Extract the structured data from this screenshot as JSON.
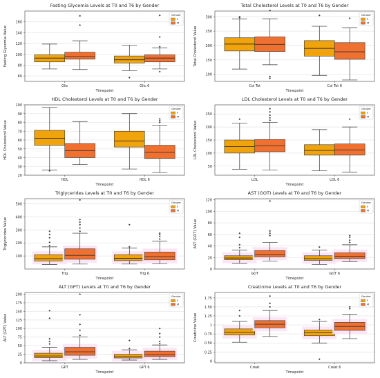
{
  "colors": {
    "F": "#f0a30a",
    "M": "#f07030",
    "grid": "#e6e6e6",
    "median": "#333333",
    "band": "#fbe3f5"
  },
  "chart_data": [
    {
      "type": "boxplot",
      "title": "Fasting Glycemia Levels at T0 and T6 by Gender",
      "xlabel": "Timepoint",
      "ylabel": "Fasting Glycemia Value",
      "ylim": [
        50,
        180
      ],
      "yticks": [
        60,
        80,
        100,
        120,
        140,
        160
      ],
      "categories": [
        "Glic",
        "Glic 6"
      ],
      "legend": {
        "title": "Gender",
        "entries": [
          "F",
          "M"
        ],
        "position": "top-right"
      },
      "band": false,
      "series": [
        {
          "name": "F",
          "boxes": [
            {
              "whislo": 73,
              "q1": 86,
              "med": 93,
              "q3": 99,
              "whishi": 119,
              "fliers": []
            },
            {
              "whislo": 70,
              "q1": 84,
              "med": 90,
              "q3": 97,
              "whishi": 117,
              "fliers": [
                57
              ]
            }
          ]
        },
        {
          "name": "M",
          "boxes": [
            {
              "whislo": 72,
              "q1": 91,
              "med": 96,
              "q3": 104,
              "whishi": 125,
              "fliers": [
                154,
                171
              ]
            },
            {
              "whislo": 73,
              "q1": 86,
              "med": 93,
              "q3": 99,
              "whishi": 112,
              "fliers": [
                68,
                114,
                132,
                172
              ]
            }
          ]
        }
      ]
    },
    {
      "type": "boxplot",
      "title": "Total Cholesterol Levels at T0 and T6 by Gender",
      "xlabel": "Timepoint",
      "ylabel": "Total Cholesterol Value",
      "ylim": [
        75,
        320
      ],
      "yticks": [
        100,
        150,
        200,
        250,
        300
      ],
      "categories": [
        "Col Tot",
        "Col Tot 6"
      ],
      "legend": {
        "title": "Gender",
        "entries": [
          "F",
          "M"
        ],
        "position": "top-right"
      },
      "band": false,
      "series": [
        {
          "name": "F",
          "boxes": [
            {
              "whislo": 118,
              "q1": 181,
              "med": 205,
              "q3": 227,
              "whishi": 292,
              "fliers": [
                297,
                300
              ]
            },
            {
              "whislo": 96,
              "q1": 163,
              "med": 190,
              "q3": 217,
              "whishi": 267,
              "fliers": [
                305
              ]
            }
          ]
        },
        {
          "name": "M",
          "boxes": [
            {
              "whislo": 133,
              "q1": 179,
              "med": 204,
              "q3": 230,
              "whishi": 293,
              "fliers": [
                86,
                92,
                322
              ]
            },
            {
              "whislo": 80,
              "q1": 152,
              "med": 178,
              "q3": 210,
              "whishi": 262,
              "fliers": [
                295
              ]
            }
          ]
        }
      ]
    },
    {
      "type": "boxplot",
      "title": "HDL Cholesterol Levels at T0 and T6 by Gender",
      "xlabel": "Timepoint",
      "ylabel": "HDL Cholesterol Value",
      "ylim": [
        20,
        100
      ],
      "yticks": [
        20,
        30,
        40,
        50,
        60,
        70,
        80,
        90,
        100
      ],
      "categories": [
        "HDL",
        "HDL 6"
      ],
      "legend": {
        "title": "Gender",
        "entries": [
          "F",
          "M"
        ],
        "position": "top-right"
      },
      "band": false,
      "series": [
        {
          "name": "F",
          "boxes": [
            {
              "whislo": 26,
              "q1": 54,
              "med": 62,
              "q3": 71,
              "whishi": 97,
              "fliers": [
                25
              ]
            },
            {
              "whislo": 27,
              "q1": 52,
              "med": 59,
              "q3": 70,
              "whishi": 90,
              "fliers": []
            }
          ]
        },
        {
          "name": "M",
          "boxes": [
            {
              "whislo": 32,
              "q1": 40,
              "med": 48,
              "q3": 56,
              "whishi": 81,
              "fliers": []
            },
            {
              "whislo": 23,
              "q1": 39,
              "med": 46,
              "q3": 54,
              "whishi": 77,
              "fliers": [
                80,
                82,
                84
              ]
            }
          ]
        }
      ]
    },
    {
      "type": "boxplot",
      "title": "LDL Cholesterol Levels at T0 and T6 by Gender",
      "xlabel": "Timepoint",
      "ylabel": "LDL Cholesterol Value",
      "ylim": [
        15,
        285
      ],
      "yticks": [
        50,
        100,
        150,
        200,
        250
      ],
      "categories": [
        "LDL",
        "LDL 6"
      ],
      "legend": {
        "title": "Gender",
        "entries": [
          "F",
          "M"
        ],
        "position": "top-right"
      },
      "band": false,
      "series": [
        {
          "name": "F",
          "boxes": [
            {
              "whislo": 38,
              "q1": 100,
              "med": 125,
              "q3": 150,
              "whishi": 215,
              "fliers": [
                230
              ]
            },
            {
              "whislo": 32,
              "q1": 92,
              "med": 110,
              "q3": 132,
              "whishi": 190,
              "fliers": []
            }
          ]
        },
        {
          "name": "M",
          "boxes": [
            {
              "whislo": 35,
              "q1": 105,
              "med": 128,
              "q3": 152,
              "whishi": 218,
              "fliers": [
                226,
                235,
                245,
                258,
                270
              ]
            },
            {
              "whislo": 27,
              "q1": 92,
              "med": 112,
              "q3": 135,
              "whishi": 200,
              "fliers": [
                230
              ]
            }
          ]
        }
      ]
    },
    {
      "type": "boxplot",
      "title": "Triglycerides Levels at T0 and T6 by Gender",
      "xlabel": "Timepoint",
      "ylabel": "Triglycerides Value",
      "ylim": [
        0,
        540
      ],
      "yticks": [
        100,
        200,
        300,
        400,
        500
      ],
      "categories": [
        "Trig",
        "Trig 6"
      ],
      "legend": {
        "title": "Gender",
        "entries": [
          "F",
          "M"
        ],
        "position": "top-right"
      },
      "band": true,
      "series": [
        {
          "name": "F",
          "boxes": [
            {
              "whislo": 35,
              "q1": 62,
              "med": 80,
              "q3": 110,
              "whishi": 170,
              "fliers": [
                180,
                205,
                240,
                265,
                290
              ]
            },
            {
              "whislo": 38,
              "q1": 64,
              "med": 82,
              "q3": 110,
              "whishi": 160,
              "fliers": [
                170,
                340
              ]
            }
          ]
        },
        {
          "name": "M",
          "boxes": [
            {
              "whislo": 38,
              "q1": 75,
              "med": 105,
              "q3": 155,
              "whishi": 275,
              "fliers": [
                290,
                315,
                340,
                360,
                380,
                530
              ]
            },
            {
              "whislo": 40,
              "q1": 70,
              "med": 95,
              "q3": 130,
              "whishi": 215,
              "fliers": [
                230,
                250,
                265,
                275
              ]
            }
          ]
        }
      ]
    },
    {
      "type": "boxplot",
      "title": "AST (GOT) Levels at T0 and T6 by Gender",
      "xlabel": "Timepoint",
      "ylabel": "AST (GOT) Value",
      "ylim": [
        0,
        122
      ],
      "yticks": [
        0,
        20,
        40,
        60,
        80,
        100,
        120
      ],
      "categories": [
        "GOT",
        "GOT 6"
      ],
      "legend": {
        "title": "Gender",
        "entries": [
          "F",
          "M"
        ],
        "position": "top-right"
      },
      "band": true,
      "series": [
        {
          "name": "F",
          "boxes": [
            {
              "whislo": 10,
              "q1": 16,
              "med": 19,
              "q3": 23,
              "whishi": 33,
              "fliers": [
                37,
                42,
                55,
                62
              ]
            },
            {
              "whislo": 8,
              "q1": 15,
              "med": 18,
              "q3": 23,
              "whishi": 33,
              "fliers": [
                38
              ]
            }
          ]
        },
        {
          "name": "M",
          "boxes": [
            {
              "whislo": 14,
              "q1": 21,
              "med": 25,
              "q3": 32,
              "whishi": 46,
              "fliers": [
                58,
                62,
                66,
                118
              ]
            },
            {
              "whislo": 13,
              "q1": 18,
              "med": 22,
              "q3": 28,
              "whishi": 42,
              "fliers": [
                46,
                50,
                55,
                58
              ]
            }
          ]
        }
      ]
    },
    {
      "type": "boxplot",
      "title": "ALT (GPT) Levels at T0 and T6 by Gender",
      "xlabel": "Timepoint",
      "ylabel": "ALT (GPT) Value",
      "ylim": [
        0,
        205
      ],
      "yticks": [
        0,
        25,
        50,
        75,
        100,
        125,
        150,
        175,
        200
      ],
      "categories": [
        "GPT",
        "GPT 6"
      ],
      "legend": {
        "title": "Gender",
        "entries": [
          "F",
          "M"
        ],
        "position": "top-right"
      },
      "band": true,
      "series": [
        {
          "name": "F",
          "boxes": [
            {
              "whislo": 6,
              "q1": 15,
              "med": 20,
              "q3": 28,
              "whishi": 45,
              "fliers": [
                55,
                62,
                70,
                130,
                152
              ]
            },
            {
              "whislo": 8,
              "q1": 14,
              "med": 18,
              "q3": 25,
              "whishi": 38,
              "fliers": [
                42,
                65
              ]
            }
          ]
        },
        {
          "name": "M",
          "boxes": [
            {
              "whislo": 10,
              "q1": 22,
              "med": 32,
              "q3": 45,
              "whishi": 75,
              "fliers": [
                80,
                95,
                112,
                140,
                200
              ]
            },
            {
              "whislo": 10,
              "q1": 18,
              "med": 24,
              "q3": 34,
              "whishi": 52,
              "fliers": [
                56,
                62,
                75,
                85,
                100
              ]
            }
          ]
        }
      ]
    },
    {
      "type": "boxplot",
      "title": "Creatinine Levels at T0 and T6 by Gender",
      "xlabel": "Timepoint",
      "ylabel": "Creatinine Value",
      "ylim": [
        -0.05,
        1.9
      ],
      "yticks": [
        0.0,
        0.25,
        0.5,
        0.75,
        1.0,
        1.25,
        1.5,
        1.75
      ],
      "categories": [
        "Creat",
        "Creat 6"
      ],
      "legend": {
        "title": "Gender",
        "entries": [
          "F",
          "M"
        ],
        "position": "top-right"
      },
      "band": true,
      "series": [
        {
          "name": "F",
          "boxes": [
            {
              "whislo": 0.52,
              "q1": 0.72,
              "med": 0.8,
              "q3": 0.89,
              "whishi": 1.1,
              "fliers": [
                1.25,
                1.4
              ]
            },
            {
              "whislo": 0.5,
              "q1": 0.7,
              "med": 0.78,
              "q3": 0.86,
              "whishi": 1.1,
              "fliers": [
                0.05,
                1.15
              ]
            }
          ]
        },
        {
          "name": "M",
          "boxes": [
            {
              "whislo": 0.68,
              "q1": 0.92,
              "med": 1.02,
              "q3": 1.12,
              "whishi": 1.4,
              "fliers": [
                1.5,
                1.6,
                1.8
              ]
            },
            {
              "whislo": 0.62,
              "q1": 0.85,
              "med": 0.96,
              "q3": 1.07,
              "whishi": 1.3,
              "fliers": [
                1.45,
                1.5
              ]
            }
          ]
        }
      ]
    }
  ]
}
